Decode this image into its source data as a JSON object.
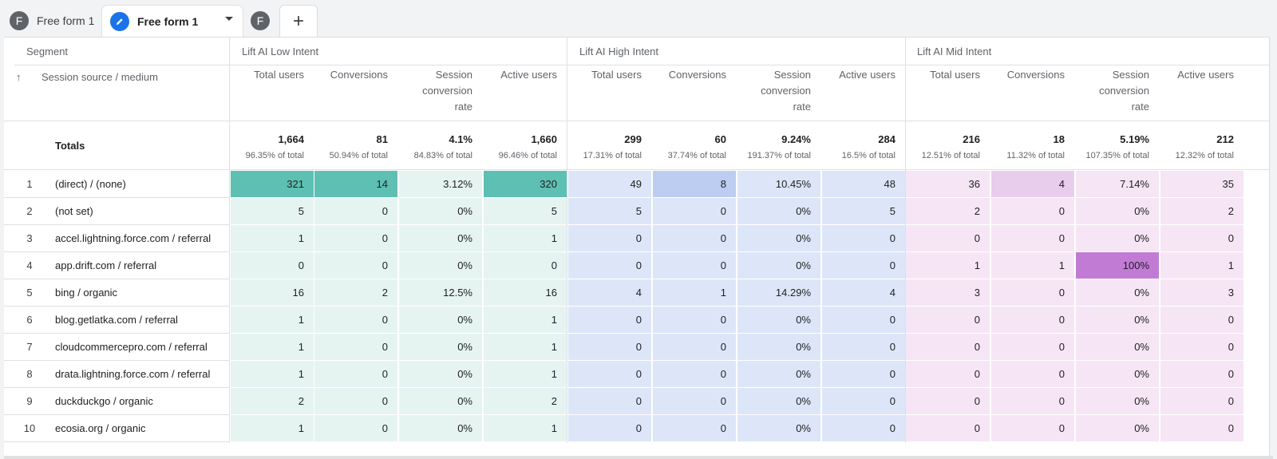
{
  "tabs": {
    "tab1": {
      "avatar": "F",
      "label": "Free form 1"
    },
    "tab2": {
      "label": "Free form 1"
    },
    "tab3": {
      "avatar": "F"
    },
    "add_label": "+"
  },
  "table": {
    "segment_label": "Segment",
    "dimension_label": "Session source / medium",
    "sort_arrow": "↑",
    "groups": [
      "Lift AI Low Intent",
      "Lift AI High Intent",
      "Lift AI Mid Intent"
    ],
    "metric_labels": [
      "Total users",
      "Conversions",
      "Session conversion rate",
      "Active users"
    ],
    "totals_label": "Totals",
    "totals": [
      {
        "value": "1,664",
        "pct": "96.35% of total"
      },
      {
        "value": "81",
        "pct": "50.94% of total"
      },
      {
        "value": "4.1%",
        "pct": "84.83% of total"
      },
      {
        "value": "1,660",
        "pct": "96.46% of total"
      },
      {
        "value": "299",
        "pct": "17.31% of total"
      },
      {
        "value": "60",
        "pct": "37.74% of total"
      },
      {
        "value": "9.24%",
        "pct": "191.37% of total"
      },
      {
        "value": "284",
        "pct": "16.5% of total"
      },
      {
        "value": "216",
        "pct": "12.51% of total"
      },
      {
        "value": "18",
        "pct": "11.32% of total"
      },
      {
        "value": "5.19%",
        "pct": "107.35% of total"
      },
      {
        "value": "212",
        "pct": "12.32% of total"
      }
    ],
    "rows": [
      {
        "idx": "1",
        "name": "(direct) / (none)",
        "cells": [
          "321",
          "14",
          "3.12%",
          "320",
          "49",
          "8",
          "10.45%",
          "48",
          "36",
          "4",
          "7.14%",
          "35"
        ]
      },
      {
        "idx": "2",
        "name": "(not set)",
        "cells": [
          "5",
          "0",
          "0%",
          "5",
          "5",
          "0",
          "0%",
          "5",
          "2",
          "0",
          "0%",
          "2"
        ]
      },
      {
        "idx": "3",
        "name": "accel.lightning.force.com / referral",
        "cells": [
          "1",
          "0",
          "0%",
          "1",
          "0",
          "0",
          "0%",
          "0",
          "0",
          "0",
          "0%",
          "0"
        ]
      },
      {
        "idx": "4",
        "name": "app.drift.com / referral",
        "cells": [
          "0",
          "0",
          "0%",
          "0",
          "0",
          "0",
          "0%",
          "0",
          "1",
          "1",
          "100%",
          "1"
        ]
      },
      {
        "idx": "5",
        "name": "bing / organic",
        "cells": [
          "16",
          "2",
          "12.5%",
          "16",
          "4",
          "1",
          "14.29%",
          "4",
          "3",
          "0",
          "0%",
          "3"
        ]
      },
      {
        "idx": "6",
        "name": "blog.getlatka.com / referral",
        "cells": [
          "1",
          "0",
          "0%",
          "1",
          "0",
          "0",
          "0%",
          "0",
          "0",
          "0",
          "0%",
          "0"
        ]
      },
      {
        "idx": "7",
        "name": "cloudcommercepro.com / referral",
        "cells": [
          "1",
          "0",
          "0%",
          "1",
          "0",
          "0",
          "0%",
          "0",
          "0",
          "0",
          "0%",
          "0"
        ]
      },
      {
        "idx": "8",
        "name": "drata.lightning.force.com / referral",
        "cells": [
          "1",
          "0",
          "0%",
          "1",
          "0",
          "0",
          "0%",
          "0",
          "0",
          "0",
          "0%",
          "0"
        ]
      },
      {
        "idx": "9",
        "name": "duckduckgo / organic",
        "cells": [
          "2",
          "0",
          "0%",
          "2",
          "0",
          "0",
          "0%",
          "0",
          "0",
          "0",
          "0%",
          "0"
        ]
      },
      {
        "idx": "10",
        "name": "ecosia.org / organic",
        "cells": [
          "1",
          "0",
          "0%",
          "1",
          "0",
          "0",
          "0%",
          "0",
          "0",
          "0",
          "0%",
          "0"
        ]
      }
    ],
    "colors": {
      "low_light": "#e6f4f1",
      "low_strong": "#5ec0b2",
      "high_light": "#dde6f8",
      "high_strong": "#bccdf1",
      "mid_light": "#f6e6f5",
      "mid_medium": "#e8cdec",
      "mid_strong": "#c27bd4"
    }
  }
}
